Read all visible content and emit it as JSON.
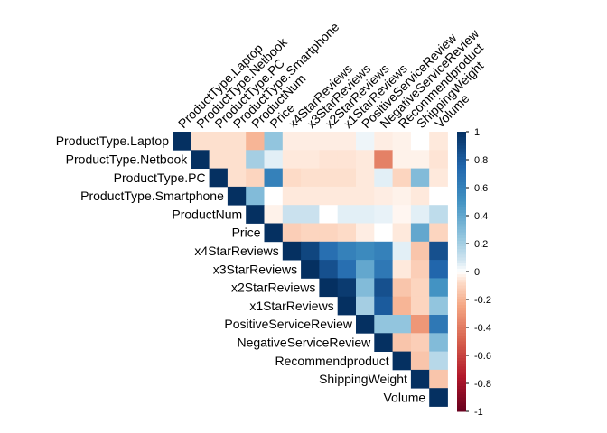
{
  "chart_data": {
    "type": "heatmap",
    "layout": "upper-triangle",
    "variables": [
      "ProductType.Laptop",
      "ProductType.Netbook",
      "ProductType.PC",
      "ProductType.Smartphone",
      "ProductNum",
      "Price",
      "x4StarReviews",
      "x3StarReviews",
      "x2StarReviews",
      "x1StarReviews",
      "PositiveServiceReview",
      "NegativeServiceReview",
      "Recommendproduct",
      "ShippingWeight",
      "Volume"
    ],
    "matrix": [
      [
        1,
        -0.07,
        -0.07,
        -0.07,
        -0.2,
        0.25,
        -0.04,
        -0.04,
        -0.04,
        -0.04,
        0.03,
        -0.04,
        -0.03,
        0.0,
        -0.05
      ],
      [
        -0.07,
        1,
        -0.07,
        -0.07,
        0.2,
        0.05,
        -0.05,
        -0.05,
        -0.06,
        -0.06,
        -0.05,
        -0.38,
        -0.03,
        -0.03,
        -0.06
      ],
      [
        -0.07,
        -0.07,
        1,
        -0.07,
        -0.1,
        0.6,
        -0.08,
        -0.07,
        -0.07,
        -0.07,
        -0.05,
        0.05,
        -0.1,
        0.3,
        -0.05
      ],
      [
        -0.07,
        -0.07,
        -0.07,
        1,
        0.3,
        0.0,
        -0.05,
        -0.05,
        -0.05,
        -0.05,
        -0.05,
        -0.04,
        -0.03,
        -0.05,
        0.0
      ],
      [
        -0.2,
        0.2,
        -0.1,
        0.3,
        1,
        -0.03,
        0.1,
        0.1,
        0.0,
        0.05,
        0.05,
        0.04,
        -0.02,
        0.05,
        0.13
      ],
      [
        0.25,
        0.05,
        0.6,
        0.0,
        -0.03,
        1,
        -0.12,
        -0.1,
        -0.1,
        -0.08,
        -0.04,
        0.0,
        -0.05,
        0.4,
        -0.1
      ],
      [
        -0.04,
        -0.05,
        -0.08,
        -0.05,
        0.1,
        -0.12,
        1,
        0.9,
        0.7,
        0.6,
        0.55,
        0.6,
        0.05,
        -0.15,
        0.85
      ],
      [
        -0.04,
        -0.05,
        -0.07,
        -0.05,
        0.1,
        -0.1,
        0.9,
        1,
        0.85,
        0.7,
        0.4,
        0.65,
        -0.05,
        -0.12,
        0.75
      ],
      [
        -0.04,
        -0.06,
        -0.07,
        -0.05,
        0.0,
        -0.1,
        0.7,
        0.85,
        1,
        0.95,
        0.3,
        0.85,
        -0.15,
        -0.1,
        0.5
      ],
      [
        -0.04,
        -0.06,
        -0.07,
        -0.05,
        0.05,
        -0.08,
        0.6,
        0.7,
        0.95,
        1,
        0.2,
        0.8,
        -0.2,
        -0.1,
        0.25
      ],
      [
        0.03,
        -0.05,
        -0.05,
        -0.05,
        0.05,
        -0.04,
        0.55,
        0.4,
        0.3,
        0.2,
        1,
        0.25,
        0.25,
        -0.3,
        0.65
      ],
      [
        -0.04,
        -0.38,
        0.05,
        -0.04,
        0.04,
        0.0,
        0.6,
        0.65,
        0.85,
        0.8,
        0.25,
        1,
        -0.15,
        -0.12,
        0.3
      ],
      [
        -0.03,
        -0.03,
        -0.1,
        -0.03,
        -0.02,
        -0.05,
        0.05,
        -0.05,
        -0.15,
        -0.2,
        0.25,
        -0.15,
        1,
        -0.15,
        0.15
      ],
      [
        0.0,
        -0.03,
        0.3,
        -0.05,
        0.05,
        0.4,
        -0.15,
        -0.12,
        -0.1,
        -0.1,
        -0.3,
        -0.12,
        -0.15,
        1,
        -0.15
      ],
      [
        -0.05,
        -0.06,
        -0.05,
        0.0,
        0.13,
        -0.1,
        0.85,
        0.75,
        0.5,
        0.25,
        0.65,
        0.3,
        0.15,
        -0.15,
        1
      ]
    ],
    "colorbar": {
      "range": [
        -1,
        1
      ],
      "ticks": [
        "1",
        "0.8",
        "0.6",
        "0.4",
        "0.2",
        "0",
        "-0.2",
        "-0.4",
        "-0.6",
        "-0.8",
        "-1"
      ],
      "colors": {
        "negative": "#67001F",
        "neutral": "#FFFFFF",
        "positive": "#053061"
      }
    },
    "title": "",
    "xlabel": "",
    "ylabel": ""
  }
}
